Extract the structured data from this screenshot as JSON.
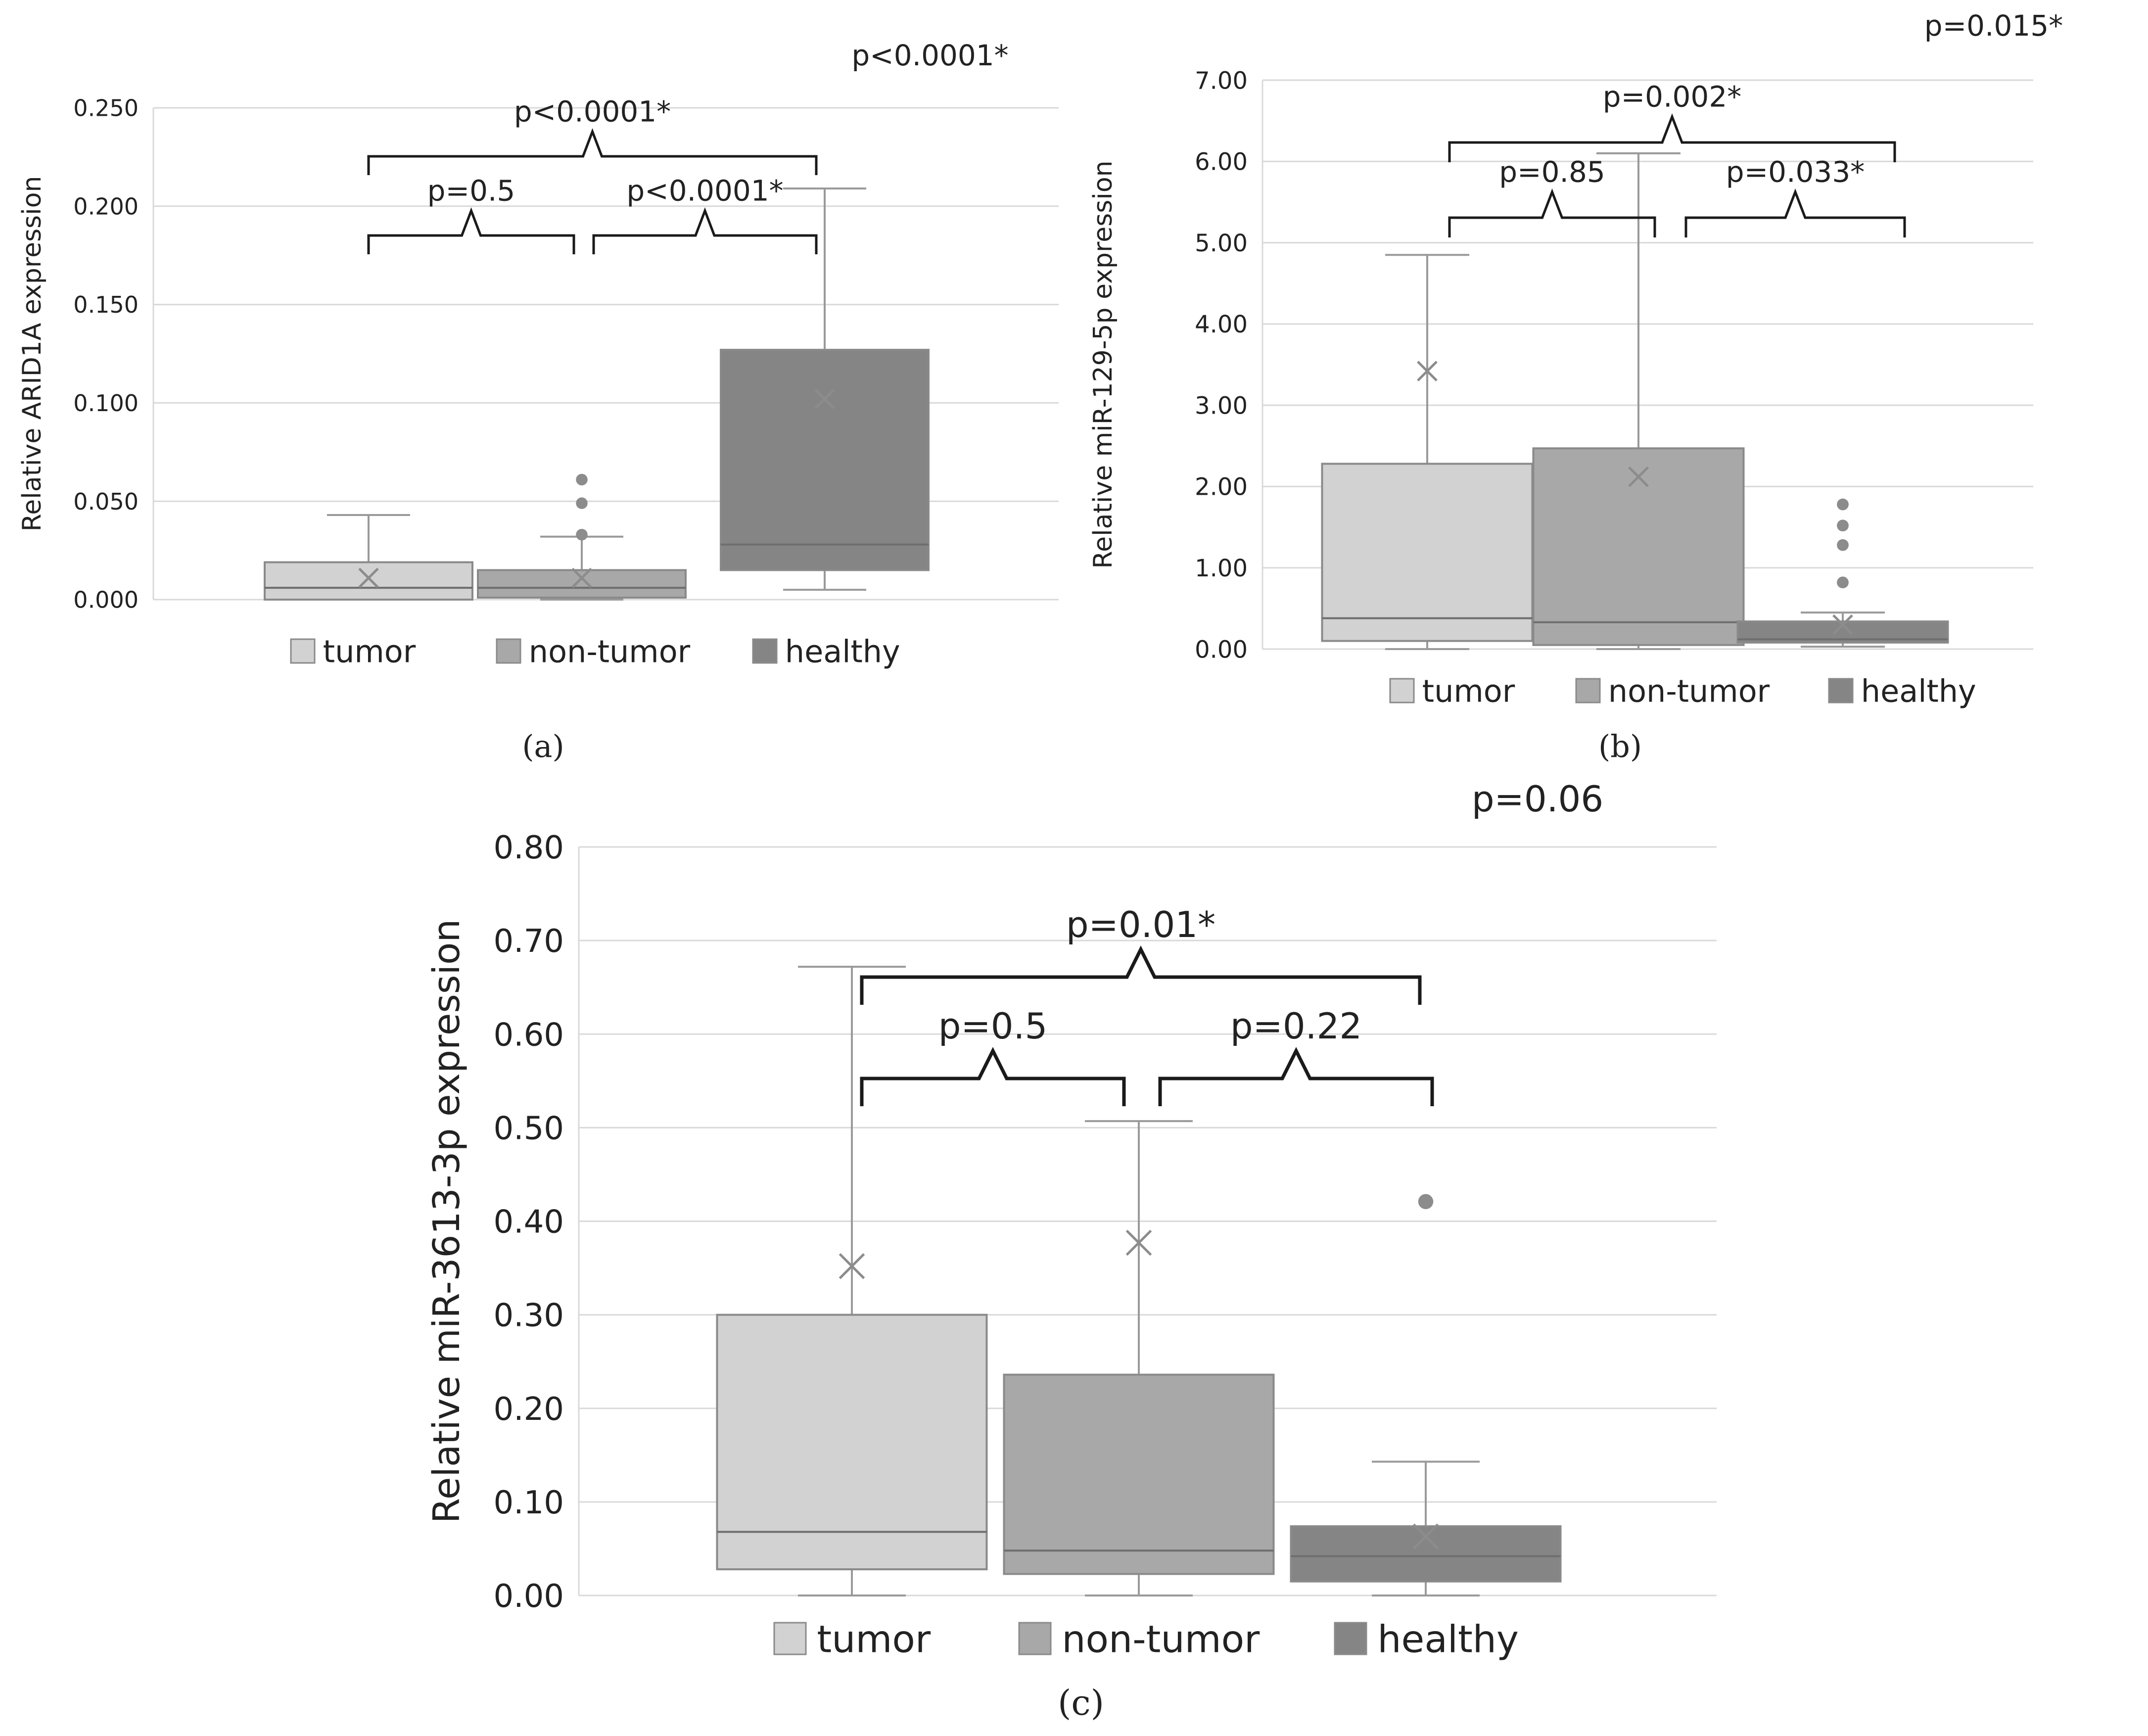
{
  "chart_data": [
    {
      "type": "box",
      "panel_label": "(a)",
      "ylabel": "Relative ARID1A expression",
      "ylim": [
        0,
        0.25
      ],
      "ytick_step": 0.05,
      "ytick_labels": [
        "0.000",
        "0.050",
        "0.100",
        "0.150",
        "0.200",
        "0.250"
      ],
      "categories": [
        "tumor",
        "non-tumor",
        "healthy"
      ],
      "colors": [
        "#d2d2d2",
        "#a8a8a8",
        "#858585"
      ],
      "boxes": [
        {
          "name": "tumor",
          "min": 0.0,
          "q1": 0.0,
          "median": 0.006,
          "q3": 0.019,
          "max": 0.043,
          "mean": 0.011,
          "outliers": []
        },
        {
          "name": "non-tumor",
          "min": 0.0,
          "q1": 0.001,
          "median": 0.006,
          "q3": 0.015,
          "max": 0.032,
          "mean": 0.011,
          "outliers": [
            0.033,
            0.049,
            0.061
          ]
        },
        {
          "name": "healthy",
          "min": 0.005,
          "q1": 0.015,
          "median": 0.028,
          "q3": 0.127,
          "max": 0.209,
          "mean": 0.102,
          "outliers": []
        }
      ],
      "overall_p": "p<0.0001*",
      "comparisons": [
        {
          "groups": [
            "tumor",
            "non-tumor"
          ],
          "label": "p=0.5"
        },
        {
          "groups": [
            "non-tumor",
            "healthy"
          ],
          "label": "p<0.0001*"
        },
        {
          "groups": [
            "tumor",
            "healthy"
          ],
          "label": "p<0.0001*"
        }
      ]
    },
    {
      "type": "box",
      "panel_label": "(b)",
      "ylabel": "Relative  miR-129-5p expression",
      "ylim": [
        0,
        7
      ],
      "ytick_step": 1,
      "ytick_labels": [
        "0.00",
        "1.00",
        "2.00",
        "3.00",
        "4.00",
        "5.00",
        "6.00",
        "7.00"
      ],
      "categories": [
        "tumor",
        "non-tumor",
        "healthy"
      ],
      "colors": [
        "#d2d2d2",
        "#a8a8a8",
        "#858585"
      ],
      "boxes": [
        {
          "name": "tumor",
          "min": 0.0,
          "q1": 0.1,
          "median": 0.38,
          "q3": 2.28,
          "max": 4.85,
          "mean": 3.42,
          "outliers": []
        },
        {
          "name": "non-tumor",
          "min": 0.0,
          "q1": 0.05,
          "median": 0.33,
          "q3": 2.47,
          "max": 6.1,
          "mean": 2.12,
          "outliers": []
        },
        {
          "name": "healthy",
          "min": 0.03,
          "q1": 0.08,
          "median": 0.12,
          "q3": 0.34,
          "max": 0.45,
          "mean": 0.3,
          "outliers": [
            0.82,
            1.28,
            1.52,
            1.78
          ]
        }
      ],
      "overall_p": "p=0.015*",
      "comparisons": [
        {
          "groups": [
            "tumor",
            "non-tumor"
          ],
          "label": "p=0.85"
        },
        {
          "groups": [
            "non-tumor",
            "healthy"
          ],
          "label": "p=0.033*"
        },
        {
          "groups": [
            "tumor",
            "healthy"
          ],
          "label": "p=0.002*"
        }
      ]
    },
    {
      "type": "box",
      "panel_label": "(c)",
      "ylabel": "Relative miR-3613-3p expression",
      "ylim": [
        0,
        0.8
      ],
      "ytick_step": 0.1,
      "ytick_labels": [
        "0.00",
        "0.10",
        "0.20",
        "0.30",
        "0.40",
        "0.50",
        "0.60",
        "0.70",
        "0.80"
      ],
      "categories": [
        "tumor",
        "non-tumor",
        "healthy"
      ],
      "colors": [
        "#d2d2d2",
        "#a8a8a8",
        "#858585"
      ],
      "boxes": [
        {
          "name": "tumor",
          "min": 0.0,
          "q1": 0.028,
          "median": 0.068,
          "q3": 0.3,
          "max": 0.672,
          "mean": 0.352,
          "outliers": []
        },
        {
          "name": "non-tumor",
          "min": 0.0,
          "q1": 0.023,
          "median": 0.048,
          "q3": 0.236,
          "max": 0.507,
          "mean": 0.377,
          "outliers": []
        },
        {
          "name": "healthy",
          "min": 0.0,
          "q1": 0.015,
          "median": 0.042,
          "q3": 0.074,
          "max": 0.143,
          "mean": 0.063,
          "outliers": [
            0.421
          ]
        }
      ],
      "overall_p": "p=0.06",
      "comparisons": [
        {
          "groups": [
            "tumor",
            "non-tumor"
          ],
          "label": "p=0.5"
        },
        {
          "groups": [
            "non-tumor",
            "healthy"
          ],
          "label": "p=0.22"
        },
        {
          "groups": [
            "tumor",
            "healthy"
          ],
          "label": "p=0.01*"
        }
      ]
    }
  ]
}
